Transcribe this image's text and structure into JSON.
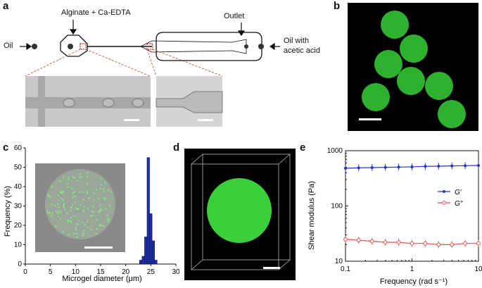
{
  "panels": {
    "a": {
      "label": "a",
      "inlet_top": "Alginate + Ca-EDTA",
      "inlet_left": "Oil",
      "outlet": "Outlet",
      "inlet_right_line1": "Oil with",
      "inlet_right_line2": "acetic acid"
    },
    "b": {
      "label": "b"
    },
    "c": {
      "label": "c"
    },
    "d": {
      "label": "d"
    },
    "e": {
      "label": "e"
    }
  },
  "chart_data": [
    {
      "panel": "c",
      "type": "bar",
      "xlabel": "Microgel diameter (μm)",
      "ylabel": "Frequency (%)",
      "xlim": [
        0,
        30
      ],
      "ylim": [
        0,
        60
      ],
      "xticks": [
        "0",
        "5",
        "10",
        "15",
        "20",
        "25",
        "30"
      ],
      "yticks": [
        "0",
        "10",
        "20",
        "30",
        "40",
        "50",
        "60"
      ],
      "bar_color": "#1f2fa3",
      "bins": [
        {
          "x": 23.0,
          "value": 2
        },
        {
          "x": 23.5,
          "value": 4
        },
        {
          "x": 24.0,
          "value": 14
        },
        {
          "x": 24.5,
          "value": 55
        },
        {
          "x": 25.0,
          "value": 26
        },
        {
          "x": 25.5,
          "value": 12
        },
        {
          "x": 26.0,
          "value": 2
        }
      ]
    },
    {
      "panel": "e",
      "type": "line",
      "xlabel": "Frequency (rad s⁻¹)",
      "ylabel": "Shear modulus (Pa)",
      "xscale": "log",
      "yscale": "log",
      "xlim": [
        0.1,
        10
      ],
      "ylim": [
        10,
        1000
      ],
      "xticks": [
        "0.1",
        "1",
        "10"
      ],
      "yticks": [
        "10",
        "100",
        "1000"
      ],
      "legend_position": "right",
      "series": [
        {
          "name": "G′",
          "color": "#2233cc",
          "x": [
            0.1,
            0.158,
            0.251,
            0.398,
            0.631,
            1.0,
            1.585,
            2.512,
            3.981,
            6.31,
            10
          ],
          "values": [
            480,
            490,
            495,
            500,
            505,
            510,
            520,
            525,
            530,
            535,
            540
          ]
        },
        {
          "name": "G″",
          "color": "#e05050",
          "x": [
            0.1,
            0.158,
            0.251,
            0.398,
            0.631,
            1.0,
            1.585,
            2.512,
            3.981,
            6.31,
            10
          ],
          "values": [
            25,
            24,
            23,
            22,
            22,
            21,
            21,
            20,
            20,
            21,
            21
          ]
        }
      ]
    }
  ]
}
